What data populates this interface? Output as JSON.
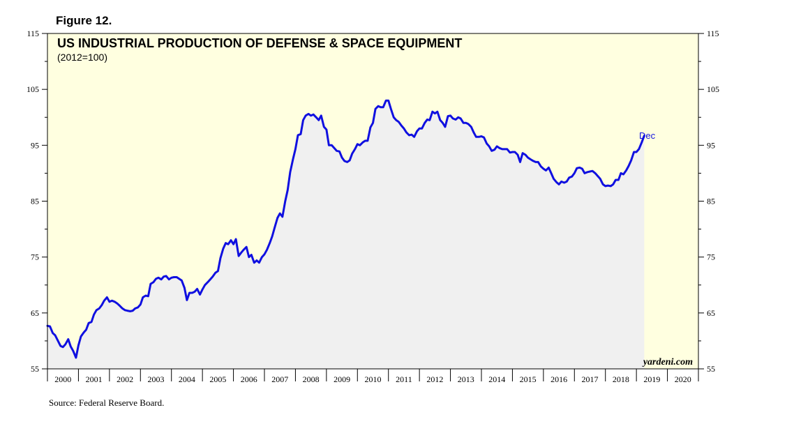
{
  "figure_label": "Figure 12.",
  "source": "Source: Federal Reserve Board.",
  "brand": "yardeni.com",
  "colors": {
    "plot_bg": "#ffffe0",
    "area": "#f0f0f0",
    "line": "#1010e0",
    "axis": "#000000"
  },
  "chart_data": {
    "type": "area",
    "title": "US INDUSTRIAL PRODUCTION OF DEFENSE & SPACE EQUIPMENT",
    "subtitle": "(2012=100)",
    "xlabel": "",
    "ylabel": "",
    "ylim": [
      55,
      115
    ],
    "xlim": [
      2000,
      2021
    ],
    "y_ticks": [
      "55",
      "65",
      "75",
      "85",
      "95",
      "105",
      "115"
    ],
    "x_ticks": [
      "2000",
      "2001",
      "2002",
      "2003",
      "2004",
      "2005",
      "2006",
      "2007",
      "2008",
      "2009",
      "2010",
      "2011",
      "2012",
      "2013",
      "2014",
      "2015",
      "2016",
      "2017",
      "2018",
      "2019",
      "2020"
    ],
    "annotation": "Dec",
    "grid": false,
    "series": [
      {
        "name": "Defense & Space Equipment",
        "points": [
          [
            2000.0,
            62.7
          ],
          [
            2000.08,
            62.6
          ],
          [
            2000.17,
            61.4
          ],
          [
            2000.25,
            61.0
          ],
          [
            2000.33,
            60.1
          ],
          [
            2000.42,
            59.1
          ],
          [
            2000.5,
            58.9
          ],
          [
            2000.58,
            59.4
          ],
          [
            2000.67,
            60.3
          ],
          [
            2000.75,
            59.0
          ],
          [
            2000.83,
            58.2
          ],
          [
            2000.92,
            57.0
          ],
          [
            2001.0,
            59.2
          ],
          [
            2001.08,
            60.8
          ],
          [
            2001.17,
            61.5
          ],
          [
            2001.25,
            62.0
          ],
          [
            2001.33,
            63.2
          ],
          [
            2001.42,
            63.4
          ],
          [
            2001.5,
            64.7
          ],
          [
            2001.58,
            65.5
          ],
          [
            2001.67,
            65.8
          ],
          [
            2001.75,
            66.4
          ],
          [
            2001.83,
            67.2
          ],
          [
            2001.92,
            67.8
          ],
          [
            2002.0,
            67.0
          ],
          [
            2002.08,
            67.2
          ],
          [
            2002.17,
            67.0
          ],
          [
            2002.25,
            66.7
          ],
          [
            2002.33,
            66.3
          ],
          [
            2002.42,
            65.8
          ],
          [
            2002.5,
            65.5
          ],
          [
            2002.58,
            65.4
          ],
          [
            2002.67,
            65.3
          ],
          [
            2002.75,
            65.4
          ],
          [
            2002.83,
            65.8
          ],
          [
            2002.92,
            66.0
          ],
          [
            2003.0,
            66.5
          ],
          [
            2003.08,
            67.8
          ],
          [
            2003.17,
            68.1
          ],
          [
            2003.25,
            68.0
          ],
          [
            2003.33,
            70.2
          ],
          [
            2003.42,
            70.5
          ],
          [
            2003.5,
            71.1
          ],
          [
            2003.58,
            71.3
          ],
          [
            2003.67,
            71.0
          ],
          [
            2003.75,
            71.5
          ],
          [
            2003.83,
            71.6
          ],
          [
            2003.92,
            71.0
          ],
          [
            2004.0,
            71.3
          ],
          [
            2004.08,
            71.4
          ],
          [
            2004.17,
            71.4
          ],
          [
            2004.25,
            71.1
          ],
          [
            2004.33,
            70.8
          ],
          [
            2004.42,
            69.5
          ],
          [
            2004.5,
            67.3
          ],
          [
            2004.58,
            68.6
          ],
          [
            2004.67,
            68.6
          ],
          [
            2004.75,
            68.8
          ],
          [
            2004.83,
            69.3
          ],
          [
            2004.92,
            68.3
          ],
          [
            2005.0,
            69.2
          ],
          [
            2005.08,
            70.0
          ],
          [
            2005.17,
            70.5
          ],
          [
            2005.25,
            71.0
          ],
          [
            2005.33,
            71.5
          ],
          [
            2005.42,
            72.2
          ],
          [
            2005.5,
            72.5
          ],
          [
            2005.58,
            74.8
          ],
          [
            2005.67,
            76.5
          ],
          [
            2005.75,
            77.5
          ],
          [
            2005.83,
            77.3
          ],
          [
            2005.92,
            78.0
          ],
          [
            2006.0,
            77.3
          ],
          [
            2006.08,
            78.2
          ],
          [
            2006.17,
            75.2
          ],
          [
            2006.25,
            75.8
          ],
          [
            2006.33,
            76.3
          ],
          [
            2006.42,
            76.8
          ],
          [
            2006.5,
            75.0
          ],
          [
            2006.58,
            75.4
          ],
          [
            2006.67,
            74.0
          ],
          [
            2006.75,
            74.4
          ],
          [
            2006.83,
            74.0
          ],
          [
            2006.92,
            75.0
          ],
          [
            2007.0,
            75.5
          ],
          [
            2007.08,
            76.3
          ],
          [
            2007.17,
            77.5
          ],
          [
            2007.25,
            78.7
          ],
          [
            2007.33,
            80.3
          ],
          [
            2007.42,
            82.0
          ],
          [
            2007.5,
            82.8
          ],
          [
            2007.58,
            82.2
          ],
          [
            2007.67,
            85.0
          ],
          [
            2007.75,
            87.0
          ],
          [
            2007.83,
            90.2
          ],
          [
            2007.92,
            92.5
          ],
          [
            2008.0,
            94.3
          ],
          [
            2008.08,
            96.8
          ],
          [
            2008.17,
            97.0
          ],
          [
            2008.25,
            99.5
          ],
          [
            2008.33,
            100.3
          ],
          [
            2008.42,
            100.6
          ],
          [
            2008.5,
            100.3
          ],
          [
            2008.58,
            100.5
          ],
          [
            2008.67,
            100.0
          ],
          [
            2008.75,
            99.5
          ],
          [
            2008.83,
            100.3
          ],
          [
            2008.92,
            98.3
          ],
          [
            2009.0,
            97.8
          ],
          [
            2009.08,
            95.0
          ],
          [
            2009.17,
            95.0
          ],
          [
            2009.25,
            94.5
          ],
          [
            2009.33,
            94.0
          ],
          [
            2009.42,
            93.9
          ],
          [
            2009.5,
            92.8
          ],
          [
            2009.58,
            92.2
          ],
          [
            2009.67,
            92.0
          ],
          [
            2009.75,
            92.3
          ],
          [
            2009.83,
            93.5
          ],
          [
            2009.92,
            94.3
          ],
          [
            2010.0,
            95.2
          ],
          [
            2010.08,
            95.0
          ],
          [
            2010.17,
            95.5
          ],
          [
            2010.25,
            95.8
          ],
          [
            2010.33,
            95.8
          ],
          [
            2010.42,
            98.2
          ],
          [
            2010.5,
            99.0
          ],
          [
            2010.58,
            101.5
          ],
          [
            2010.67,
            102.0
          ],
          [
            2010.75,
            101.8
          ],
          [
            2010.83,
            101.8
          ],
          [
            2010.92,
            103.0
          ],
          [
            2011.0,
            103.0
          ],
          [
            2011.08,
            101.5
          ],
          [
            2011.17,
            100.0
          ],
          [
            2011.25,
            99.5
          ],
          [
            2011.33,
            99.2
          ],
          [
            2011.42,
            98.5
          ],
          [
            2011.5,
            98.0
          ],
          [
            2011.58,
            97.3
          ],
          [
            2011.67,
            96.8
          ],
          [
            2011.75,
            96.9
          ],
          [
            2011.83,
            96.5
          ],
          [
            2011.92,
            97.5
          ],
          [
            2012.0,
            98.0
          ],
          [
            2012.08,
            98.0
          ],
          [
            2012.17,
            99.0
          ],
          [
            2012.25,
            99.6
          ],
          [
            2012.33,
            99.5
          ],
          [
            2012.42,
            101.0
          ],
          [
            2012.5,
            100.7
          ],
          [
            2012.58,
            101.0
          ],
          [
            2012.67,
            99.5
          ],
          [
            2012.75,
            99.0
          ],
          [
            2012.83,
            98.3
          ],
          [
            2012.92,
            100.2
          ],
          [
            2013.0,
            100.3
          ],
          [
            2013.08,
            99.8
          ],
          [
            2013.17,
            99.6
          ],
          [
            2013.25,
            100.0
          ],
          [
            2013.33,
            99.8
          ],
          [
            2013.42,
            99.0
          ],
          [
            2013.5,
            99.0
          ],
          [
            2013.58,
            98.8
          ],
          [
            2013.67,
            98.3
          ],
          [
            2013.75,
            97.3
          ],
          [
            2013.83,
            96.5
          ],
          [
            2013.92,
            96.5
          ],
          [
            2014.0,
            96.6
          ],
          [
            2014.08,
            96.4
          ],
          [
            2014.17,
            95.3
          ],
          [
            2014.25,
            94.8
          ],
          [
            2014.33,
            94.0
          ],
          [
            2014.42,
            94.2
          ],
          [
            2014.5,
            94.8
          ],
          [
            2014.58,
            94.5
          ],
          [
            2014.67,
            94.3
          ],
          [
            2014.75,
            94.3
          ],
          [
            2014.83,
            94.3
          ],
          [
            2014.92,
            93.7
          ],
          [
            2015.0,
            93.8
          ],
          [
            2015.08,
            93.8
          ],
          [
            2015.17,
            93.3
          ],
          [
            2015.25,
            92.0
          ],
          [
            2015.33,
            93.6
          ],
          [
            2015.42,
            93.3
          ],
          [
            2015.5,
            92.8
          ],
          [
            2015.58,
            92.5
          ],
          [
            2015.67,
            92.2
          ],
          [
            2015.75,
            92.0
          ],
          [
            2015.83,
            92.0
          ],
          [
            2015.92,
            91.2
          ],
          [
            2016.0,
            90.8
          ],
          [
            2016.08,
            90.5
          ],
          [
            2016.17,
            91.0
          ],
          [
            2016.25,
            90.0
          ],
          [
            2016.33,
            89.0
          ],
          [
            2016.42,
            88.4
          ],
          [
            2016.5,
            88.0
          ],
          [
            2016.58,
            88.5
          ],
          [
            2016.67,
            88.3
          ],
          [
            2016.75,
            88.5
          ],
          [
            2016.83,
            89.2
          ],
          [
            2016.92,
            89.4
          ],
          [
            2017.0,
            90.0
          ],
          [
            2017.08,
            90.9
          ],
          [
            2017.17,
            91.0
          ],
          [
            2017.25,
            90.8
          ],
          [
            2017.33,
            90.0
          ],
          [
            2017.42,
            90.2
          ],
          [
            2017.5,
            90.3
          ],
          [
            2017.58,
            90.4
          ],
          [
            2017.67,
            90.0
          ],
          [
            2017.75,
            89.5
          ],
          [
            2017.83,
            89.0
          ],
          [
            2017.92,
            88.0
          ],
          [
            2018.0,
            87.7
          ],
          [
            2018.08,
            87.8
          ],
          [
            2018.17,
            87.7
          ],
          [
            2018.25,
            88.0
          ],
          [
            2018.33,
            88.8
          ],
          [
            2018.42,
            88.8
          ],
          [
            2018.5,
            90.0
          ],
          [
            2018.58,
            89.8
          ],
          [
            2018.67,
            90.5
          ],
          [
            2018.75,
            91.3
          ],
          [
            2018.83,
            92.3
          ],
          [
            2018.92,
            93.8
          ],
          [
            2019.0,
            93.8
          ],
          [
            2019.08,
            94.3
          ],
          [
            2019.17,
            95.5
          ],
          [
            2019.25,
            96.7
          ]
        ]
      }
    ]
  }
}
